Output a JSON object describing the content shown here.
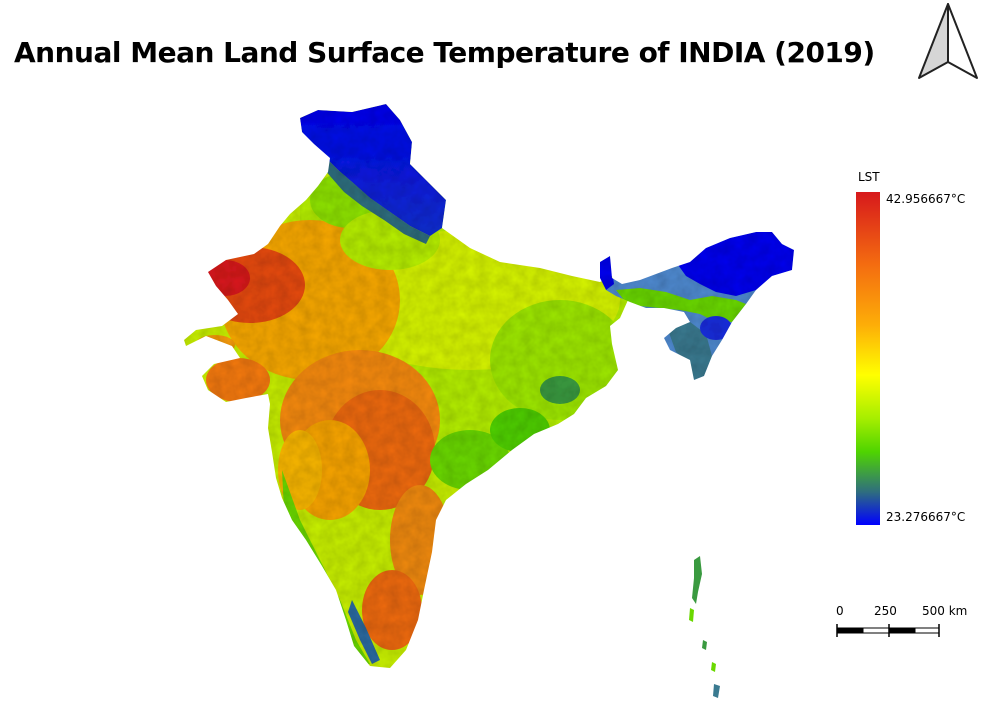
{
  "map": {
    "title": "Annual Mean Land Surface Temperature of INDIA (2019)",
    "legend": {
      "title": "LST",
      "max_label": "42.956667°C",
      "min_label": "23.276667°C",
      "ramp_colors": [
        "#d7191c",
        "#f46d10",
        "#fdae08",
        "#ffff00",
        "#a6ee00",
        "#4fd400",
        "#2f6e7e",
        "#0000ff"
      ]
    },
    "scale_bar": {
      "tick_0": "0",
      "tick_1": "250",
      "tick_2": "500 km"
    },
    "north_arrow_icon": "north-arrow-icon"
  }
}
